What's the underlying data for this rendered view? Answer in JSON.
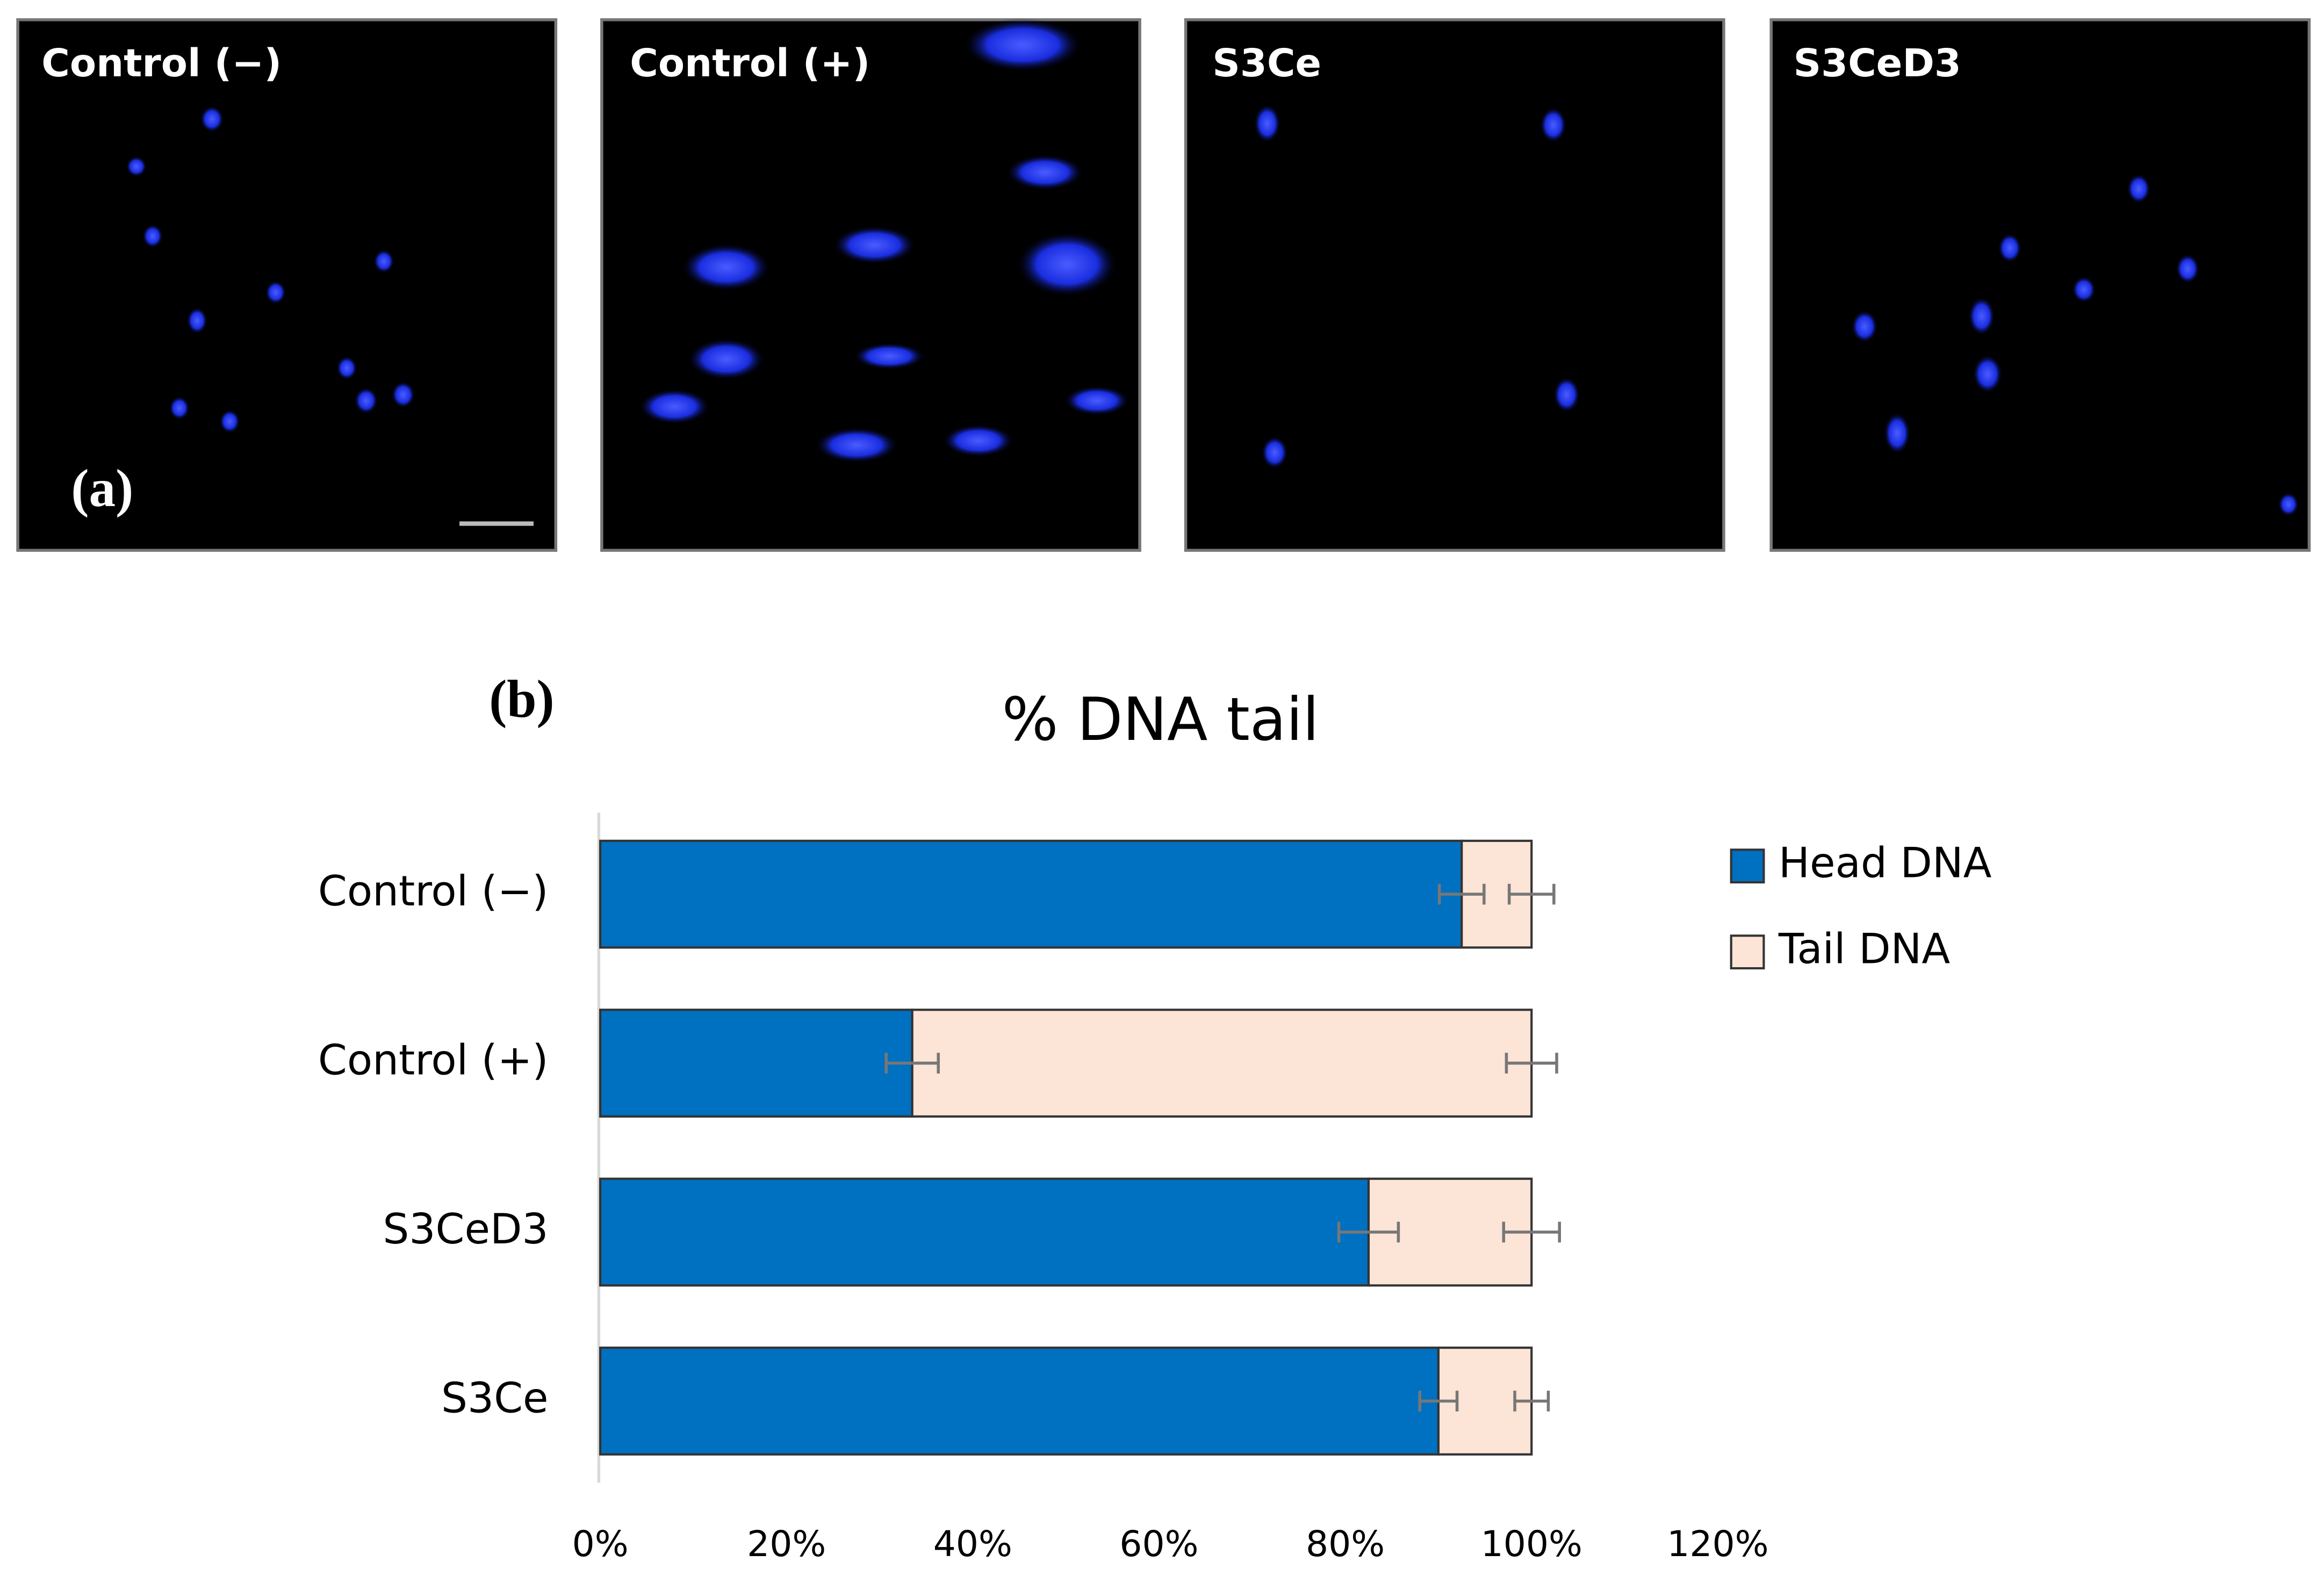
{
  "figure": {
    "panels": [
      "Control (−)",
      "Control (+)",
      "S3Ce",
      "S3CeD3"
    ],
    "panel_label_a": "(a)",
    "panel_label_b": "(b)"
  },
  "chart_data": {
    "type": "stacked_barh",
    "title": "% DNA tail",
    "categories": [
      "Control (−)",
      "Control (+)",
      "S3CeD3",
      "S3Ce"
    ],
    "series": [
      {
        "name": "Head DNA",
        "color": "#0070c0",
        "values": [
          92.5,
          33.5,
          82.5,
          90
        ],
        "errors": [
          2.4,
          2.8,
          3.2,
          2
        ]
      },
      {
        "name": "Tail DNA",
        "color": "#fce4d6",
        "values": [
          7.5,
          66.5,
          17.5,
          10
        ],
        "errors": [
          2.4,
          2.7,
          3,
          1.8
        ]
      }
    ],
    "xlim": [
      0,
      120
    ],
    "xticks": [
      {
        "value": 0,
        "label": "0%"
      },
      {
        "value": 20,
        "label": "20%"
      },
      {
        "value": 40,
        "label": "40%"
      },
      {
        "value": 60,
        "label": "60%"
      },
      {
        "value": 80,
        "label": "80%"
      },
      {
        "value": 100,
        "label": "100%"
      },
      {
        "value": 120,
        "label": "120%"
      }
    ],
    "legend": "right"
  }
}
